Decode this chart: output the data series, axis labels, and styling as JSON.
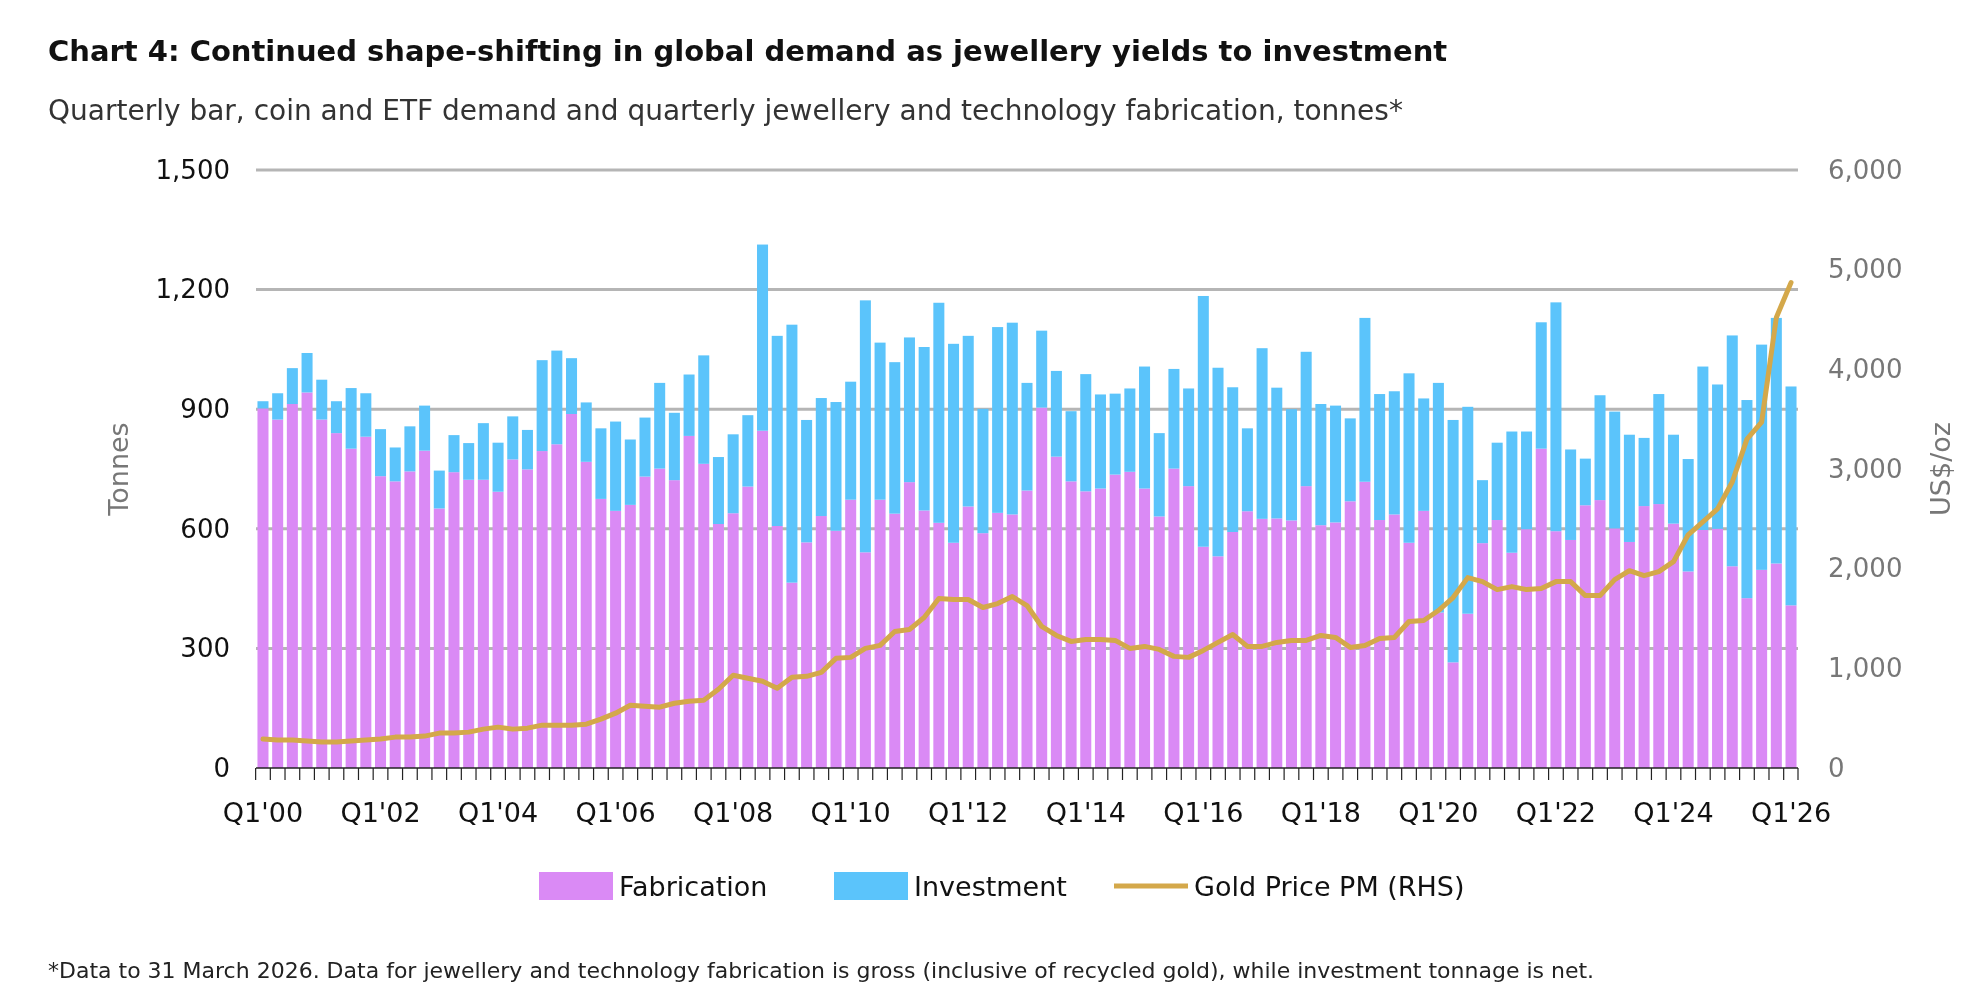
{
  "chart_data": {
    "type": "bar",
    "title": "Chart 4: Continued shape-shifting in global demand as jewellery yields to investment",
    "subtitle": "Quarterly bar, coin and ETF demand and quarterly jewellery and technology fabrication, tonnes*",
    "ylabel": "Tonnes",
    "y2label": "US$/oz",
    "stacked": true,
    "grid": "y",
    "legend": "bottom",
    "categories": [
      "Q1'00",
      null,
      null,
      null,
      null,
      null,
      null,
      null,
      "Q1'02",
      null,
      null,
      null,
      null,
      null,
      null,
      null,
      "Q1'04",
      null,
      null,
      null,
      null,
      null,
      null,
      null,
      "Q1'06",
      null,
      null,
      null,
      null,
      null,
      null,
      null,
      "Q1'08",
      null,
      null,
      null,
      null,
      null,
      null,
      null,
      "Q1'10",
      null,
      null,
      null,
      null,
      null,
      null,
      null,
      "Q1'12",
      null,
      null,
      null,
      null,
      null,
      null,
      null,
      "Q1'14",
      null,
      null,
      null,
      null,
      null,
      null,
      null,
      "Q1'16",
      null,
      null,
      null,
      null,
      null,
      null,
      null,
      "Q1'18",
      null,
      null,
      null,
      null,
      null,
      null,
      null,
      "Q1'20",
      null,
      null,
      null,
      null,
      null,
      null,
      null,
      "Q1'22",
      null,
      null,
      null,
      null,
      null,
      null,
      null,
      "Q1'24",
      null,
      null,
      null,
      null,
      null,
      null,
      null,
      "Q1'26"
    ],
    "ylim": [
      0,
      1500
    ],
    "yticks": [
      0,
      300,
      600,
      900,
      {
        "value": 1200,
        "label": "1,200"
      },
      {
        "value": 1500,
        "label": "1,500"
      }
    ],
    "y2lim": [
      0,
      6000
    ],
    "y2ticks": [
      0,
      {
        "value": 1000,
        "label": "1,000"
      },
      {
        "value": 2000,
        "label": "2,000"
      },
      {
        "value": 3000,
        "label": "3,000"
      },
      {
        "value": 4000,
        "label": "4,000"
      },
      {
        "value": 5000,
        "label": "5,000"
      },
      {
        "value": 6000,
        "label": "6,000"
      }
    ],
    "series": [
      {
        "name": "Fabrication",
        "color": "#da8af5",
        "values": [
          902,
          874,
          913,
          942,
          874,
          840,
          801,
          831,
          732,
          719,
          744,
          796,
          651,
          742,
          723,
          723,
          693,
          774,
          749,
          795,
          812,
          888,
          768,
          675,
          645,
          660,
          731,
          751,
          722,
          833,
          763,
          612,
          639,
          706,
          846,
          607,
          465,
          566,
          632,
          595,
          673,
          541,
          673,
          638,
          717,
          646,
          615,
          565,
          656,
          589,
          640,
          636,
          696,
          904,
          781,
          719,
          694,
          701,
          736,
          743,
          701,
          631,
          751,
          707,
          555,
          531,
          592,
          644,
          625,
          626,
          621,
          707,
          609,
          616,
          669,
          718,
          622,
          636,
          565,
          645,
          390,
          265,
          387,
          564,
          622,
          540,
          599,
          801,
          594,
          572,
          659,
          672,
          601,
          567,
          657,
          662,
          613,
          493,
          597,
          600,
          506,
          426,
          497,
          513,
          408
        ]
      },
      {
        "name": "Investment",
        "color": "#5bc4fb",
        "values": [
          18,
          66,
          90,
          99,
          100,
          80,
          152,
          109,
          118,
          85,
          113,
          113,
          95,
          93,
          92,
          142,
          123,
          108,
          99,
          228,
          235,
          140,
          149,
          177,
          224,
          164,
          148,
          215,
          169,
          154,
          272,
          168,
          198,
          179,
          467,
          477,
          647,
          307,
          296,
          323,
          296,
          632,
          394,
          380,
          363,
          410,
          552,
          499,
          428,
          312,
          466,
          481,
          270,
          193,
          215,
          176,
          294,
          236,
          203,
          209,
          306,
          209,
          250,
          245,
          629,
          473,
          363,
          208,
          428,
          328,
          279,
          337,
          304,
          293,
          208,
          411,
          316,
          309,
          425,
          282,
          576,
          608,
          519,
          158,
          194,
          304,
          245,
          317,
          574,
          227,
          117,
          263,
          293,
          269,
          171,
          276,
          223,
          282,
          410,
          362,
          579,
          497,
          565,
          616,
          549
        ]
      },
      {
        "name": "Gold Price PM (RHS)",
        "type": "line",
        "axis": "y2",
        "color": "#d4a84a",
        "marker": "none",
        "line_style": "solid",
        "values": [
          290,
          280,
          280,
          270,
          260,
          260,
          270,
          280,
          290,
          310,
          310,
          320,
          350,
          350,
          360,
          390,
          410,
          390,
          400,
          430,
          430,
          430,
          440,
          490,
          550,
          630,
          620,
          610,
          650,
          670,
          680,
          790,
          930,
          900,
          870,
          800,
          910,
          920,
          960,
          1100,
          1110,
          1200,
          1230,
          1370,
          1390,
          1510,
          1700,
          1690,
          1690,
          1610,
          1650,
          1720,
          1630,
          1420,
          1330,
          1270,
          1290,
          1290,
          1280,
          1200,
          1220,
          1190,
          1120,
          1110,
          1180,
          1260,
          1340,
          1220,
          1220,
          1260,
          1280,
          1280,
          1330,
          1310,
          1210,
          1230,
          1300,
          1310,
          1470,
          1480,
          1580,
          1710,
          1910,
          1870,
          1790,
          1820,
          1790,
          1800,
          1870,
          1870,
          1730,
          1730,
          1890,
          1980,
          1930,
          1970,
          2070,
          2340,
          2470,
          2600,
          2870,
          3300,
          3470,
          4520,
          4870
        ]
      }
    ],
    "annotations": [
      "*Data to 31 March 2026. Data for jewellery and technology fabrication is gross (inclusive of recycled gold), while investment tonnage is net."
    ]
  }
}
